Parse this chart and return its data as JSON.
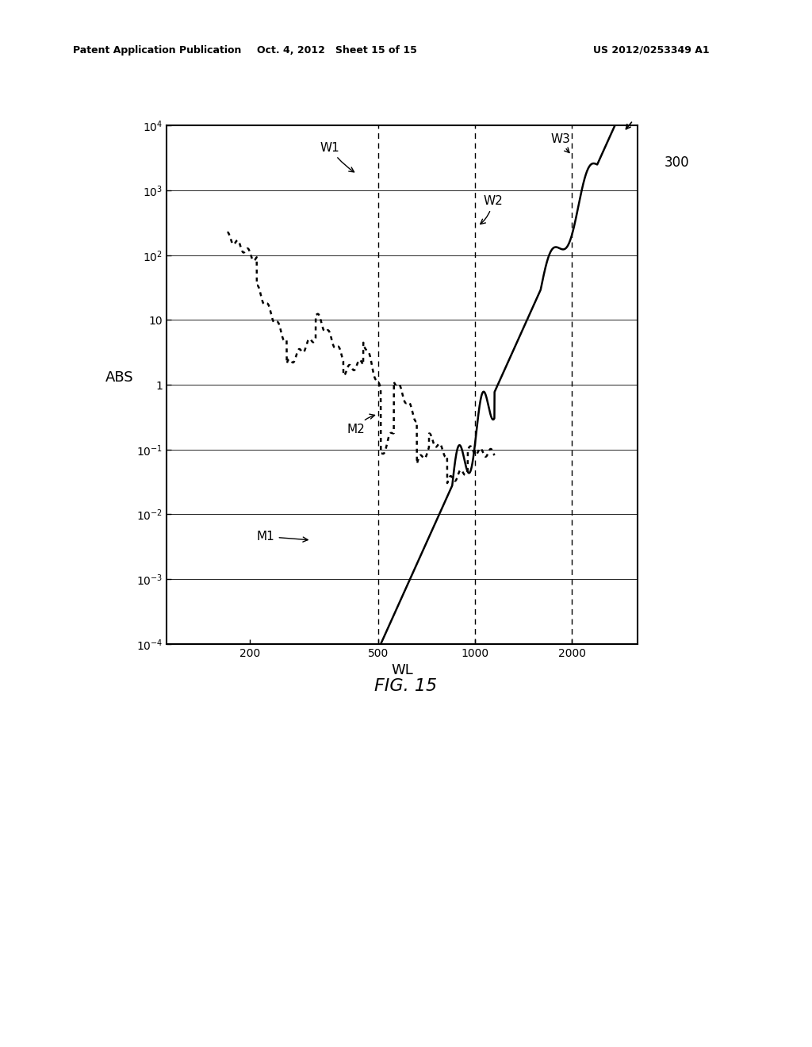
{
  "title": "",
  "xlabel": "WL",
  "ylabel": "ABS",
  "fig_label": "FIG. 15",
  "ref_number": "300",
  "patent_header_left": "Patent Application Publication",
  "patent_header_mid": "Oct. 4, 2012   Sheet 15 of 15",
  "patent_header_right": "US 2012/0253349 A1",
  "vlines": [
    500,
    1000,
    2000
  ],
  "bg_color": "#ffffff",
  "line_color": "#000000"
}
